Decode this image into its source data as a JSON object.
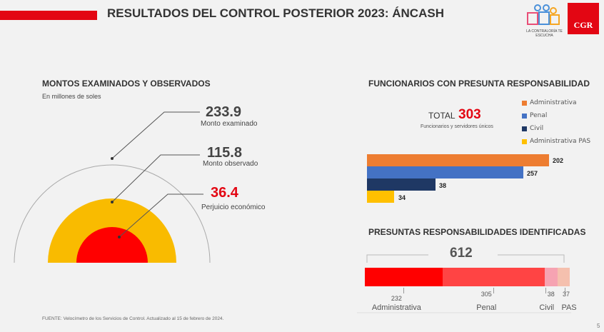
{
  "header": {
    "title": "RESULTADOS DEL CONTROL POSTERIOR 2023: ÁNCASH",
    "logo1_text": "LA CONTRALORÍA TE ESCUCHA",
    "logo2_text": "CGR"
  },
  "montos": {
    "title": "MONTOS EXAMINADOS Y OBSERVADOS",
    "subtitle": "En millones de soles",
    "items": [
      {
        "value": "233.9",
        "label": "Monto examinado",
        "color": "#444444"
      },
      {
        "value": "115.8",
        "label": "Monto observado",
        "color": "#444444"
      },
      {
        "value": "36.4",
        "label": "Perjuicio económico",
        "color": "#e30613"
      }
    ]
  },
  "funcionarios": {
    "title": "FUNCIONARIOS CON PRESUNTA RESPONSABILIDAD",
    "total_label": "TOTAL",
    "total_value": "303",
    "total_caption": "Funcionarios y servidores únicos",
    "legend": [
      {
        "label": "Administrativa",
        "color": "#ed7d31"
      },
      {
        "label": "Penal",
        "color": "#4472c4"
      },
      {
        "label": "Civil",
        "color": "#1f3864"
      },
      {
        "label": "Administrativa PAS",
        "color": "#ffc000"
      }
    ],
    "bars": [
      {
        "value": "202"
      },
      {
        "value": "257"
      },
      {
        "value": "38"
      },
      {
        "value": "34"
      }
    ]
  },
  "responsabilidades": {
    "title": "PRESUNTAS RESPONSABILIDADES IDENTIFICADAS",
    "total": "612",
    "segments": [
      {
        "label": "Administrativa",
        "value": 232,
        "color": "#ff0000"
      },
      {
        "label": "Penal",
        "value": 305,
        "color": "#ff4444"
      },
      {
        "label": "Civil",
        "value": 38,
        "color": "#f6a3b2"
      },
      {
        "label": "PAS",
        "value": 37,
        "color": "#f5c0ae"
      }
    ]
  },
  "footer": {
    "source": "FUENTE: Velocímetro de los Servicios de Control. Actualizado al 15 de febrero de 2024.",
    "page": "5"
  }
}
